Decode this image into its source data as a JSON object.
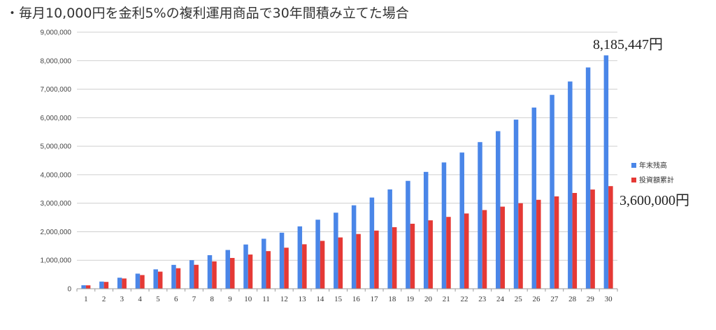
{
  "title": "・毎月10,000円を金利5%の複利運用商品で30年間積み立てた場合",
  "chart_data": {
    "type": "bar",
    "categories": [
      "1",
      "2",
      "3",
      "4",
      "5",
      "6",
      "7",
      "8",
      "9",
      "10",
      "11",
      "12",
      "13",
      "14",
      "15",
      "16",
      "17",
      "18",
      "19",
      "20",
      "21",
      "22",
      "23",
      "24",
      "25",
      "26",
      "27",
      "28",
      "29",
      "30"
    ],
    "series": [
      {
        "name": "年末残高",
        "color": "#4a86e8",
        "values": [
          122800,
          252000,
          387500,
          530100,
          680000,
          837600,
          1003200,
          1177200,
          1360000,
          1552000,
          1754000,
          1966000,
          2188000,
          2422000,
          2668000,
          2927000,
          3199000,
          3484000,
          3784000,
          4099000,
          4430000,
          4778000,
          5144000,
          5528000,
          5932000,
          6356000,
          6801000,
          7270000,
          7762000,
          8185447
        ]
      },
      {
        "name": "投資額累計",
        "color": "#e53935",
        "values": [
          120000,
          240000,
          360000,
          480000,
          600000,
          720000,
          840000,
          960000,
          1080000,
          1200000,
          1320000,
          1440000,
          1560000,
          1680000,
          1800000,
          1920000,
          2040000,
          2160000,
          2280000,
          2400000,
          2520000,
          2640000,
          2760000,
          2880000,
          3000000,
          3120000,
          3240000,
          3360000,
          3480000,
          3600000
        ]
      }
    ],
    "yticks": [
      "0",
      "1,000,000",
      "2,000,000",
      "3,000,000",
      "4,000,000",
      "5,000,000",
      "6,000,000",
      "7,000,000",
      "8,000,000",
      "9,000,000"
    ],
    "ylim": [
      0,
      9000000
    ],
    "grid": true,
    "legend_position": "right",
    "annotations": [
      {
        "text": "8,185,447円",
        "series": 0,
        "index": 29
      },
      {
        "text": "3,600,000円",
        "series": 1,
        "index": 29
      }
    ]
  }
}
